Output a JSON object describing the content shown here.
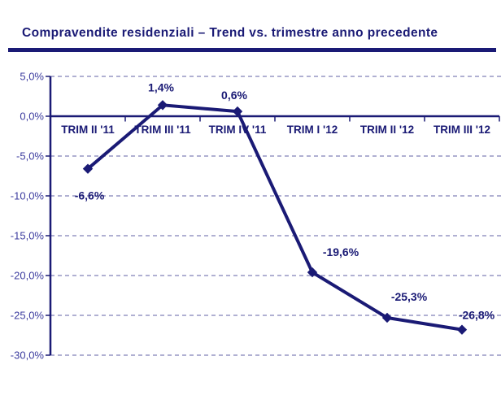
{
  "page": {
    "title": "Compravendite residenziali – Trend vs. trimestre anno precedente"
  },
  "colors": {
    "navy": "#1a1a75",
    "grid": "#8080b8",
    "axis_label": "#3c3c9f",
    "background": "#ffffff"
  },
  "chart_data": {
    "type": "line",
    "title": "Compravendite residenziali – Trend vs. trimestre anno precedente",
    "categories": [
      "TRIM II '11",
      "TRIM III '11",
      "TRIM IV '11",
      "TRIM I '12",
      "TRIM II '12",
      "TRIM III '12"
    ],
    "values": [
      -6.6,
      1.4,
      0.6,
      -19.6,
      -25.3,
      -26.8
    ],
    "data_labels": [
      "-6,6%",
      "1,4%",
      "0,6%",
      "-19,6%",
      "-25,3%",
      "-26,8%"
    ],
    "y_ticks": [
      5,
      0,
      -5,
      -10,
      -15,
      -20,
      -25,
      -30
    ],
    "y_tick_labels": [
      "5,0%",
      "0,0%",
      "-5,0%",
      "-10,0%",
      "-15,0%",
      "-20,0%",
      "-25,0%",
      "-30,0%"
    ],
    "ylim": [
      -30,
      5
    ],
    "xlabel": "",
    "ylabel": "",
    "grid": "horizontal-dashed",
    "zero_line": "solid",
    "legend": "none",
    "marker": "diamond"
  }
}
